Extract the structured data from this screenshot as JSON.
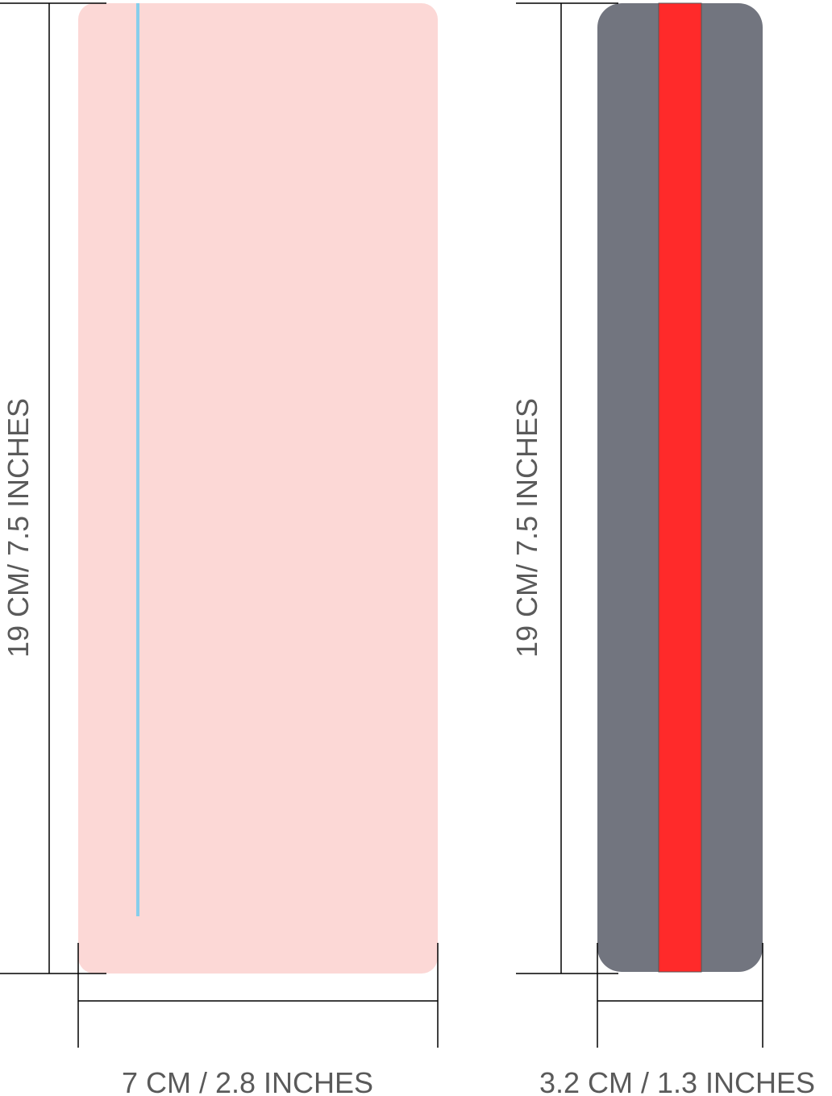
{
  "left_item": {
    "height_label": "19 CM/ 7.5 INCHES",
    "width_label": "7 CM / 2.8 INCHES",
    "body_color": "#fcd8d6",
    "line_color": "#87ceeb"
  },
  "right_item": {
    "height_label": "19 CM/ 7.5 INCHES",
    "width_label": "3.2 CM / 1.3 INCHES",
    "body_color": "#72757f",
    "stripe_color": "#ff2a2a"
  }
}
